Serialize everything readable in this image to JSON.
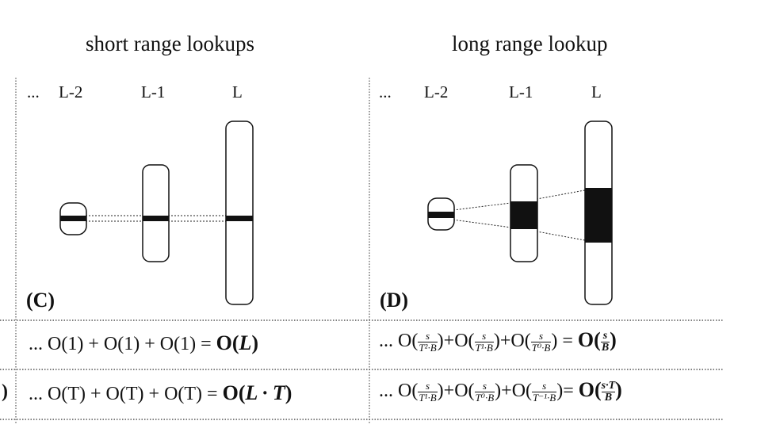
{
  "headers": {
    "left": "short range lookups",
    "right": "long range lookup"
  },
  "panels": {
    "c": {
      "label": "(C)",
      "levels": [
        "...",
        "L-2",
        "L-1",
        "L"
      ]
    },
    "d": {
      "label": "(D)",
      "levels": [
        "...",
        "L-2",
        "L-1",
        "L"
      ]
    }
  },
  "row1": {
    "left": {
      "ellipsis": "...",
      "term1": "O(1)",
      "plus1": "+",
      "term2": "O(1)",
      "plus2": "+",
      "term3": "O(1)",
      "eq": "=",
      "result_O": "O(",
      "result_var": "L",
      "result_close": ")"
    },
    "right": {
      "ellipsis": "...",
      "t1_num": "s",
      "t1_den": "T²·B",
      "t2_num": "s",
      "t2_den": "T¹·B",
      "t3_num": "s",
      "t3_den": "T⁰·B",
      "result_num": "s",
      "result_den": "B"
    }
  },
  "row2": {
    "left": {
      "edge": ")",
      "ellipsis": "...",
      "term1": "O(T)",
      "plus1": "+",
      "term2": "O(T)",
      "plus2": "+",
      "term3": "O(T)",
      "eq": "=",
      "result_O": "O(",
      "result_var": "L · T",
      "result_close": ")"
    },
    "right": {
      "ellipsis": "...",
      "t1_num": "s",
      "t1_den": "T¹·B",
      "t2_num": "s",
      "t2_den": "T⁰·B",
      "t3_num": "s",
      "t3_den": "T⁻¹·B",
      "result_num": "s·T",
      "result_den": "B"
    }
  },
  "symbols": {
    "O": "O(",
    "close": ")",
    "plus": "+",
    "eq": "="
  }
}
